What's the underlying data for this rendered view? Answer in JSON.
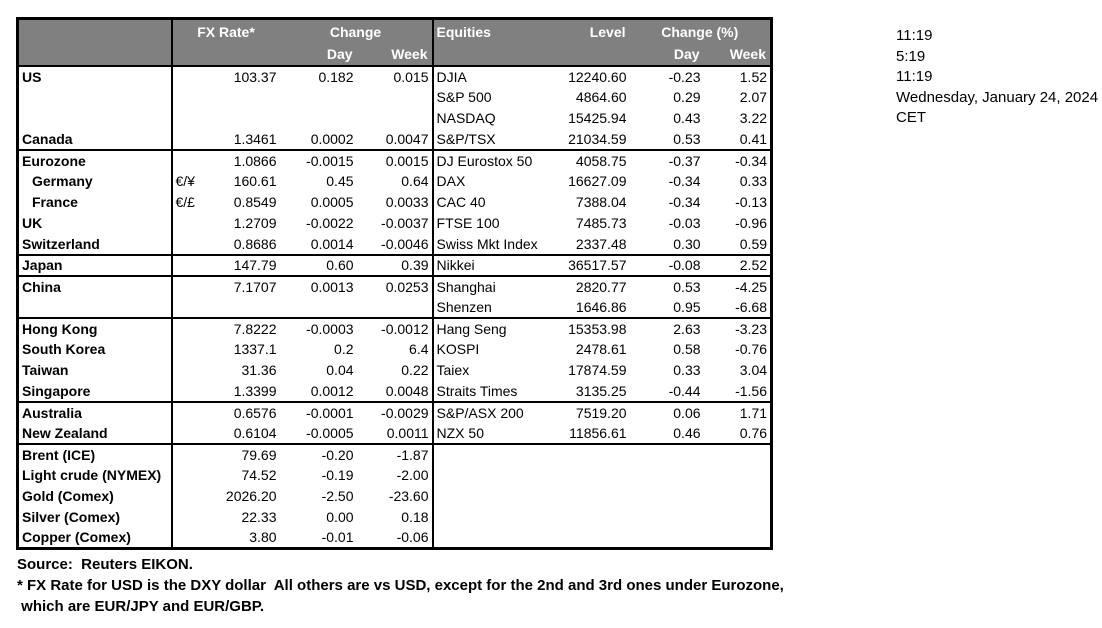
{
  "header": {
    "fx_rate": "FX Rate*",
    "change": "Change",
    "equities": "Equities",
    "level": "Level",
    "change_pct": "Change (%)",
    "day": "Day",
    "week": "Week"
  },
  "rows": [
    {
      "name": "US",
      "pair": "",
      "fx": "103.37",
      "d": "0.182",
      "w": "0.015",
      "eq": "DJIA",
      "lvl": "12240.60",
      "ed": "-0.23",
      "ew": "1.52",
      "group": true
    },
    {
      "name": "",
      "pair": "",
      "fx": "",
      "d": "",
      "w": "",
      "eq": "S&P 500",
      "lvl": "4864.60",
      "ed": "0.29",
      "ew": "2.07"
    },
    {
      "name": "",
      "pair": "",
      "fx": "",
      "d": "",
      "w": "",
      "eq": "NASDAQ",
      "lvl": "15425.94",
      "ed": "0.43",
      "ew": "3.22"
    },
    {
      "name": "Canada",
      "pair": "",
      "fx": "1.3461",
      "d": "0.0002",
      "w": "0.0047",
      "eq": "S&P/TSX",
      "lvl": "21034.59",
      "ed": "0.53",
      "ew": "0.41"
    },
    {
      "name": "Eurozone",
      "pair": "",
      "fx": "1.0866",
      "d": "-0.0015",
      "w": "0.0015",
      "eq": "DJ Eurostox 50",
      "lvl": "4058.75",
      "ed": "-0.37",
      "ew": "-0.34",
      "group": true
    },
    {
      "name": "Germany",
      "indent": true,
      "pair": "€/¥",
      "fx": "160.61",
      "d": "0.45",
      "w": "0.64",
      "eq": "DAX",
      "lvl": "16627.09",
      "ed": "-0.34",
      "ew": "0.33"
    },
    {
      "name": "France",
      "indent": true,
      "pair": "€/£",
      "fx": "0.8549",
      "d": "0.0005",
      "w": "0.0033",
      "eq": "CAC 40",
      "lvl": "7388.04",
      "ed": "-0.34",
      "ew": "-0.13"
    },
    {
      "name": "UK",
      "pair": "",
      "fx": "1.2709",
      "d": "-0.0022",
      "w": "-0.0037",
      "eq": "FTSE 100",
      "lvl": "7485.73",
      "ed": "-0.03",
      "ew": "-0.96"
    },
    {
      "name": "Switzerland",
      "pair": "",
      "fx": "0.8686",
      "d": "0.0014",
      "w": "-0.0046",
      "eq": "Swiss Mkt Index",
      "lvl": "2337.48",
      "ed": "0.30",
      "ew": "0.59"
    },
    {
      "name": "Japan",
      "pair": "",
      "fx": "147.79",
      "d": "0.60",
      "w": "0.39",
      "eq": "Nikkei",
      "lvl": "36517.57",
      "ed": "-0.08",
      "ew": "2.52",
      "group": true
    },
    {
      "name": "China",
      "pair": "",
      "fx": "7.1707",
      "d": "0.0013",
      "w": "0.0253",
      "eq": "Shanghai",
      "lvl": "2820.77",
      "ed": "0.53",
      "ew": "-4.25",
      "group": true
    },
    {
      "name": "",
      "pair": "",
      "fx": "",
      "d": "",
      "w": "",
      "eq": "Shenzen",
      "lvl": "1646.86",
      "ed": "0.95",
      "ew": "-6.68"
    },
    {
      "name": "Hong Kong",
      "pair": "",
      "fx": "7.8222",
      "d": "-0.0003",
      "w": "-0.0012",
      "eq": "Hang Seng",
      "lvl": "15353.98",
      "ed": "2.63",
      "ew": "-3.23",
      "group": true
    },
    {
      "name": "South Korea",
      "pair": "",
      "fx": "1337.1",
      "d": "0.2",
      "w": "6.4",
      "eq": "KOSPI",
      "lvl": "2478.61",
      "ed": "0.58",
      "ew": "-0.76"
    },
    {
      "name": "Taiwan",
      "pair": "",
      "fx": "31.36",
      "d": "0.04",
      "w": "0.22",
      "eq": "Taiex",
      "lvl": "17874.59",
      "ed": "0.33",
      "ew": "3.04"
    },
    {
      "name": "Singapore",
      "pair": "",
      "fx": "1.3399",
      "d": "0.0012",
      "w": "0.0048",
      "eq": "Straits Times",
      "lvl": "3135.25",
      "ed": "-0.44",
      "ew": "-1.56"
    },
    {
      "name": "Australia",
      "pair": "",
      "fx": "0.6576",
      "d": "-0.0001",
      "w": "-0.0029",
      "eq": "S&P/ASX  200",
      "lvl": "7519.20",
      "ed": "0.06",
      "ew": "1.71",
      "group": true
    },
    {
      "name": "New Zealand",
      "pair": "",
      "fx": "0.6104",
      "d": "-0.0005",
      "w": "0.0011",
      "eq": "NZX 50",
      "lvl": "11856.61",
      "ed": "0.46",
      "ew": "0.76"
    },
    {
      "name": "Brent (ICE)",
      "pair": "",
      "fx": "79.69",
      "d": "-0.20",
      "w": "-1.87",
      "eq": "",
      "lvl": "",
      "ed": "",
      "ew": "",
      "group": true
    },
    {
      "name": "Light crude (NYMEX)",
      "pair": "",
      "fx": "74.52",
      "d": "-0.19",
      "w": "-2.00",
      "eq": "",
      "lvl": "",
      "ed": "",
      "ew": ""
    },
    {
      "name": "Gold (Comex)",
      "pair": "",
      "fx": "2026.20",
      "d": "-2.50",
      "w": "-23.60",
      "eq": "",
      "lvl": "",
      "ed": "",
      "ew": ""
    },
    {
      "name": "Silver (Comex)",
      "pair": "",
      "fx": "22.33",
      "d": "0.00",
      "w": "0.18",
      "eq": "",
      "lvl": "",
      "ed": "",
      "ew": ""
    },
    {
      "name": "Copper (Comex)",
      "pair": "",
      "fx": "3.80",
      "d": "-0.01",
      "w": "-0.06",
      "eq": "",
      "lvl": "",
      "ed": "",
      "ew": ""
    }
  ],
  "sidebar": {
    "lines": [
      "11:19",
      "5:19",
      "11:19",
      "Wednesday, January 24, 2024",
      "CET"
    ]
  },
  "footer": {
    "source": "Source:  Reuters EIKON.",
    "note1": "* FX Rate for USD is the DXY dollar  All others are vs USD, except for the 2nd and 3rd ones under Eurozone,",
    "note2": " which are EUR/JPY and EUR/GBP."
  },
  "colors": {
    "header_bg": "#808080",
    "header_text": "#ffffff",
    "border": "#000000"
  }
}
